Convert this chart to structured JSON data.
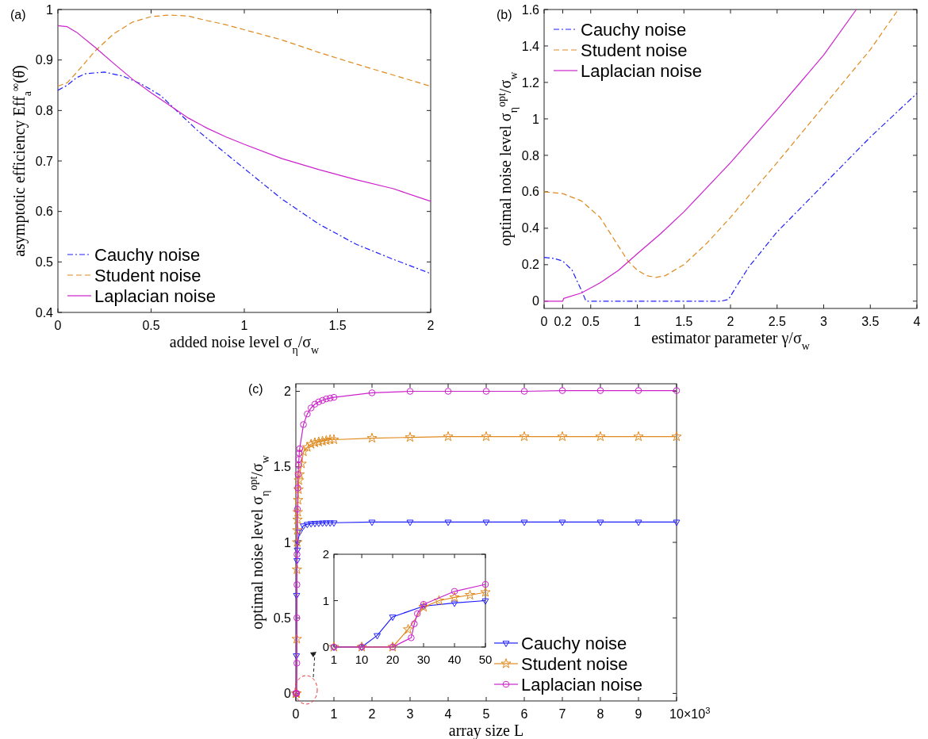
{
  "chart_data": [
    {
      "type": "line",
      "title": "(a)",
      "xlabel": "added noise level σ$_{η}$/σ$_{w}$",
      "ylabel": "asymptotic efficiency Eff$_{a}$$^{∞}$(θ̂)",
      "xlim": [
        0,
        2
      ],
      "ylim": [
        0.4,
        1
      ],
      "xticks": [
        0,
        0.5,
        1,
        1.5,
        2
      ],
      "yticks": [
        0.4,
        0.5,
        0.6,
        0.7,
        0.8,
        0.9,
        1
      ],
      "legend": "bottom left",
      "grid": false,
      "series": [
        {
          "name": "Cauchy noise",
          "color": "#1f1fff",
          "line_style": "dashdot",
          "x": [
            0,
            0.05,
            0.1,
            0.15,
            0.25,
            0.35,
            0.45,
            0.55,
            0.65,
            0.75,
            0.9,
            1.0,
            1.2,
            1.4,
            1.6,
            1.8,
            2
          ],
          "values": [
            0.84,
            0.85,
            0.865,
            0.873,
            0.876,
            0.868,
            0.852,
            0.83,
            0.795,
            0.76,
            0.715,
            0.685,
            0.625,
            0.575,
            0.535,
            0.505,
            0.477
          ]
        },
        {
          "name": "Student noise",
          "color": "#e08a1e",
          "line_style": "dashed",
          "x": [
            0,
            0.05,
            0.1,
            0.2,
            0.3,
            0.4,
            0.5,
            0.6,
            0.7,
            0.8,
            0.9,
            1.0,
            1.2,
            1.4,
            1.6,
            1.8,
            2
          ],
          "values": [
            0.848,
            0.855,
            0.875,
            0.918,
            0.952,
            0.975,
            0.986,
            0.989,
            0.987,
            0.978,
            0.97,
            0.96,
            0.94,
            0.915,
            0.892,
            0.87,
            0.848
          ]
        },
        {
          "name": "Laplacian noise",
          "color": "#cc22cc",
          "line_style": "solid",
          "x": [
            0,
            0.05,
            0.1,
            0.2,
            0.3,
            0.4,
            0.5,
            0.6,
            0.7,
            0.8,
            0.9,
            1.0,
            1.2,
            1.4,
            1.6,
            1.8,
            2
          ],
          "values": [
            0.968,
            0.966,
            0.955,
            0.925,
            0.893,
            0.862,
            0.835,
            0.81,
            0.785,
            0.765,
            0.748,
            0.733,
            0.705,
            0.683,
            0.663,
            0.645,
            0.62
          ]
        }
      ]
    },
    {
      "type": "line",
      "title": "(b)",
      "xlabel": "estimator parameter γ/σ$_{w}$",
      "ylabel": "optimal noise level σ$_{η}$$^{opt}$/σ$_{w}$",
      "xlim": [
        0,
        4
      ],
      "ylim": [
        -0.04,
        1.6
      ],
      "xticks": [
        0,
        0.2,
        0.5,
        1,
        1.5,
        2,
        2.5,
        3,
        3.5,
        4
      ],
      "yticks": [
        0,
        0.2,
        0.4,
        0.6,
        0.8,
        1,
        1.2,
        1.4,
        1.6
      ],
      "legend": "top left",
      "grid": false,
      "series": [
        {
          "name": "Cauchy noise",
          "color": "#1f1fff",
          "line_style": "dashdot",
          "x": [
            0,
            0.1,
            0.2,
            0.3,
            0.4,
            0.45,
            1.9,
            1.98,
            2.05,
            2.2,
            2.5,
            3,
            3.5,
            4
          ],
          "values": [
            0.24,
            0.235,
            0.22,
            0.17,
            0.06,
            0,
            0,
            0.01,
            0.07,
            0.19,
            0.38,
            0.64,
            0.9,
            1.14
          ]
        },
        {
          "name": "Student noise",
          "color": "#e08a1e",
          "line_style": "dashed",
          "x": [
            0,
            0.2,
            0.4,
            0.6,
            0.8,
            0.9,
            1.0,
            1.1,
            1.2,
            1.3,
            1.5,
            1.75,
            2,
            2.5,
            3,
            3.5,
            3.8
          ],
          "values": [
            0.6,
            0.59,
            0.55,
            0.46,
            0.3,
            0.22,
            0.17,
            0.14,
            0.13,
            0.14,
            0.2,
            0.32,
            0.46,
            0.76,
            1.07,
            1.38,
            1.6
          ]
        },
        {
          "name": "Laplacian noise",
          "color": "#cc22cc",
          "line_style": "solid",
          "x": [
            0,
            0.2,
            0.21,
            0.4,
            0.6,
            0.8,
            1,
            1.25,
            1.5,
            2,
            2.5,
            3,
            3.35
          ],
          "values": [
            0,
            0,
            0.015,
            0.045,
            0.1,
            0.17,
            0.26,
            0.37,
            0.49,
            0.76,
            1.05,
            1.35,
            1.6
          ]
        }
      ]
    },
    {
      "type": "line",
      "title": "(c)",
      "xlabel": "array size L",
      "ylabel": "optimal noise level σ$_{η}$$^{opt}$/σ$_{w}$",
      "annotations": [
        "×10$^{3}$"
      ],
      "xlim": [
        0,
        10
      ],
      "ylim": [
        -0.05,
        2.05
      ],
      "xticks": [
        0,
        1,
        2,
        3,
        4,
        5,
        6,
        7,
        8,
        9,
        10
      ],
      "yticks": [
        0,
        0.5,
        1,
        1.5,
        2
      ],
      "legend": "bottom right",
      "grid": false,
      "series": [
        {
          "name": "Cauchy noise",
          "color": "#1f1fff",
          "line_style": "solid",
          "marker": "triangle",
          "x": [
            0.001,
            0.01,
            0.015,
            0.02,
            0.03,
            0.04,
            0.05,
            0.1,
            0.2,
            0.3,
            0.4,
            0.5,
            0.6,
            0.7,
            0.8,
            0.9,
            1,
            2,
            3,
            4,
            5,
            6,
            7,
            8,
            9,
            10
          ],
          "values": [
            0,
            0,
            0.25,
            0.65,
            0.88,
            0.95,
            1.0,
            1.07,
            1.11,
            1.12,
            1.125,
            1.127,
            1.128,
            1.129,
            1.13,
            1.13,
            1.13,
            1.135,
            1.135,
            1.135,
            1.135,
            1.135,
            1.135,
            1.135,
            1.135,
            1.135
          ]
        },
        {
          "name": "Student noise",
          "color": "#e08a1e",
          "line_style": "solid",
          "marker": "star",
          "x": [
            0.001,
            0.01,
            0.02,
            0.025,
            0.03,
            0.035,
            0.04,
            0.045,
            0.05,
            0.06,
            0.07,
            0.08,
            0.1,
            0.15,
            0.2,
            0.3,
            0.4,
            0.5,
            0.6,
            0.7,
            0.8,
            0.9,
            1,
            2,
            3,
            4,
            5,
            6,
            7,
            8,
            9,
            10
          ],
          "values": [
            0,
            0,
            0,
            0.36,
            0.82,
            1.0,
            1.08,
            1.15,
            1.2,
            1.28,
            1.35,
            1.41,
            1.45,
            1.52,
            1.6,
            1.63,
            1.65,
            1.66,
            1.665,
            1.67,
            1.675,
            1.68,
            1.68,
            1.69,
            1.695,
            1.7,
            1.7,
            1.7,
            1.7,
            1.7,
            1.7,
            1.7
          ]
        },
        {
          "name": "Laplacian noise",
          "color": "#cc22cc",
          "line_style": "solid",
          "marker": "circle",
          "x": [
            0.001,
            0.01,
            0.02,
            0.026,
            0.027,
            0.028,
            0.03,
            0.04,
            0.05,
            0.06,
            0.07,
            0.08,
            0.09,
            0.1,
            0.2,
            0.3,
            0.4,
            0.5,
            0.6,
            0.7,
            0.8,
            0.9,
            1,
            2,
            3,
            4,
            5,
            6,
            7,
            8,
            9,
            10
          ],
          "values": [
            0,
            0,
            0,
            0.2,
            0.5,
            0.72,
            0.92,
            1.22,
            1.36,
            1.45,
            1.51,
            1.55,
            1.59,
            1.62,
            1.78,
            1.85,
            1.89,
            1.915,
            1.93,
            1.94,
            1.95,
            1.955,
            1.96,
            1.99,
            2.0,
            2.0,
            2.0,
            2.0,
            2.005,
            2.005,
            2.005,
            2.005
          ]
        }
      ]
    },
    {
      "type": "line",
      "xlim": [
        1,
        50
      ],
      "ylim": [
        0,
        2
      ],
      "xticks": [
        1,
        10,
        20,
        30,
        40,
        50
      ],
      "yticks": [
        0,
        1,
        2
      ],
      "grid": false,
      "series": [
        {
          "color": "#1f1fff",
          "line_style": "solid",
          "marker": "triangle",
          "x": [
            1,
            10,
            15,
            20,
            30,
            40,
            50
          ],
          "values": [
            0,
            0,
            0.25,
            0.65,
            0.88,
            0.95,
            1.0
          ]
        },
        {
          "color": "#e08a1e",
          "line_style": "solid",
          "marker": "star",
          "x": [
            1,
            10,
            20,
            25,
            30,
            35,
            40,
            45,
            50
          ],
          "values": [
            0,
            0,
            0,
            0.38,
            0.86,
            1.0,
            1.07,
            1.12,
            1.18
          ]
        },
        {
          "color": "#cc22cc",
          "line_style": "solid",
          "marker": "circle",
          "x": [
            1,
            10,
            20,
            26,
            27,
            28,
            30,
            40,
            50
          ],
          "values": [
            0,
            0,
            0,
            0.2,
            0.5,
            0.72,
            0.92,
            1.2,
            1.35
          ]
        }
      ]
    }
  ]
}
